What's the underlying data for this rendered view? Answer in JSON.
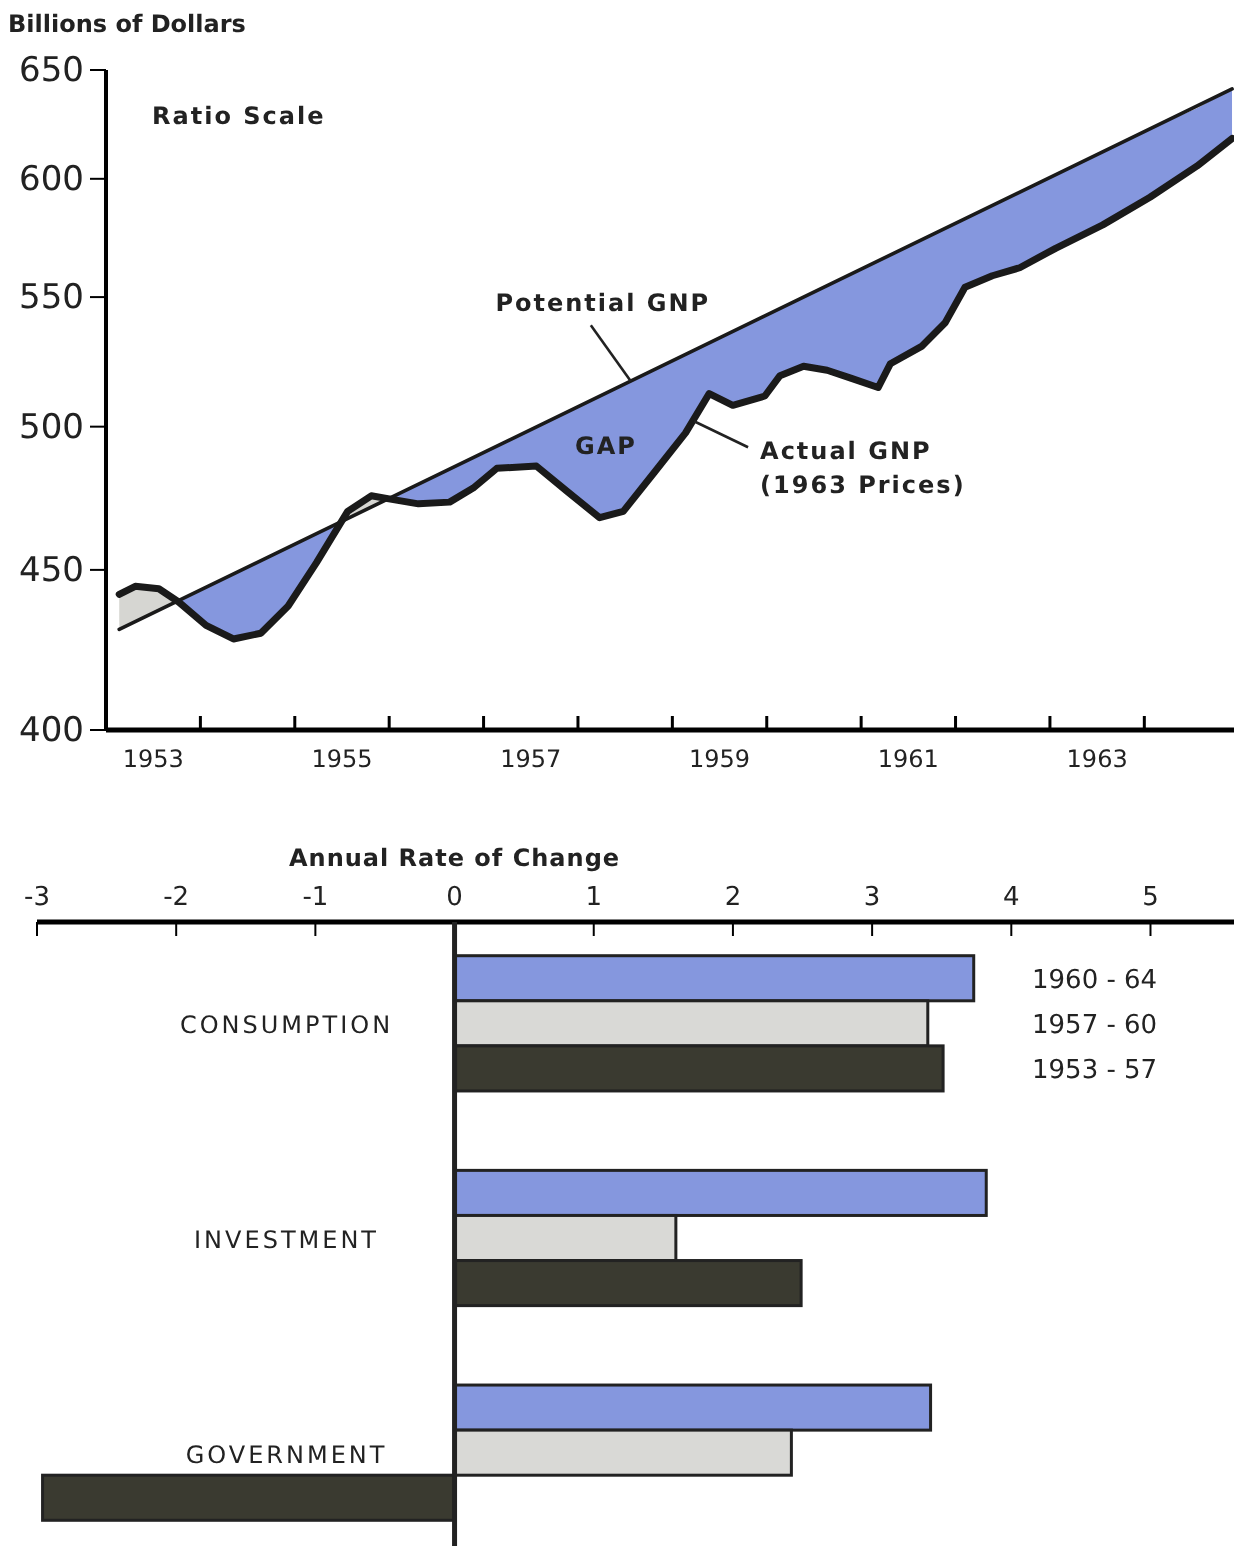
{
  "chart_data": [
    {
      "type": "line",
      "log": "y",
      "ylabel": "Billions of Dollars",
      "xlim": [
        1953,
        1964.95
      ],
      "ylim": [
        400,
        650
      ],
      "xticks": [
        {
          "value": 1953,
          "label": null
        },
        {
          "value": 1953.5,
          "label": "1953"
        },
        {
          "value": 1954,
          "label": null
        },
        {
          "value": 1955,
          "label": null
        },
        {
          "value": 1955.5,
          "label": "1955"
        },
        {
          "value": 1956,
          "label": null
        },
        {
          "value": 1957,
          "label": null
        },
        {
          "value": 1957.5,
          "label": "1957"
        },
        {
          "value": 1958,
          "label": null
        },
        {
          "value": 1959,
          "label": null
        },
        {
          "value": 1959.5,
          "label": "1959"
        },
        {
          "value": 1960,
          "label": null
        },
        {
          "value": 1961,
          "label": null
        },
        {
          "value": 1961.5,
          "label": "1961"
        },
        {
          "value": 1962,
          "label": null
        },
        {
          "value": 1963,
          "label": null
        },
        {
          "value": 1963.5,
          "label": "1963"
        },
        {
          "value": 1964,
          "label": null
        }
      ],
      "yticks": [
        400,
        450,
        500,
        550,
        600,
        650
      ],
      "series": [
        {
          "type": "line",
          "color": "#1a1a1a",
          "x": [
            1953.14,
            1964.93
          ],
          "values": [
            430.7,
            641
          ]
        },
        {
          "type": "line",
          "color": "#1a1a1a",
          "x": [
            1953.14,
            1953.31,
            1953.56,
            1953.77,
            1954.06,
            1954.35,
            1954.64,
            1954.93,
            1955.23,
            1955.56,
            1955.81,
            1956.06,
            1956.31,
            1956.64,
            1956.89,
            1957.14,
            1957.56,
            1957.89,
            1958.23,
            1958.48,
            1958.81,
            1959.14,
            1959.39,
            1959.64,
            1959.98,
            1960.14,
            1960.39,
            1960.64,
            1960.89,
            1961.18,
            1961.31,
            1961.64,
            1961.89,
            1962.1,
            1962.39,
            1962.68,
            1963.06,
            1963.56,
            1964.06,
            1964.56,
            1964.93
          ],
          "values": [
            442,
            444.6,
            443.8,
            439.5,
            432,
            427.7,
            429.5,
            438.2,
            452.4,
            469.8,
            475.2,
            473.8,
            472.4,
            473,
            477.9,
            484.9,
            485.7,
            476.6,
            467.6,
            469.8,
            483.5,
            497.7,
            512.3,
            507.9,
            511.4,
            519.1,
            522.7,
            521.2,
            518.2,
            514.6,
            523.7,
            530.4,
            539.7,
            554,
            558.7,
            562,
            570.1,
            580,
            591.9,
            605.7,
            618.1
          ],
          "lower": [
            442,
            444.6,
            443.8,
            439.5,
            432,
            427.7,
            429.5,
            438.2,
            452.4,
            469.8,
            475.2,
            473.8,
            472.4,
            473,
            477.9,
            484.9,
            485.7,
            476.6,
            467.6,
            469.8,
            483.5,
            497.7,
            512.3,
            507.9,
            511.4,
            519.1,
            522.7,
            521.2,
            518.2,
            514.6,
            523.7,
            530.4,
            539.7,
            554,
            558.7,
            562,
            570.1,
            580,
            591.9,
            605.7,
            618.1
          ],
          "upper": [
            430.7,
            433.2,
            436.8,
            440,
            444.3,
            448.7,
            453.1,
            457.5,
            462.1,
            467.3,
            471.3,
            475.3,
            479.3,
            484.7,
            488.8,
            492.9,
            499.9,
            505.5,
            511.3,
            515.7,
            521.5,
            527.3,
            531.8,
            536.3,
            542.5,
            545.4,
            550,
            554.7,
            559.4,
            564.9,
            567.4,
            573.7,
            578.6,
            582.7,
            588.4,
            594.2,
            601.9,
            612.1,
            622.5,
            632.1,
            641
          ]
        }
      ],
      "annotations": [
        "Ratio Scale",
        {
          "text": "Potential GNP",
          "x": 1958.56,
          "y": 517
        },
        "GAP",
        {
          "text": "Actual GNP\n(1963 Prices)",
          "x": 1959.23,
          "y": 502
        }
      ]
    },
    {
      "type": "bar",
      "orientation": "horizontal",
      "xlabel": "Annual Rate of Change",
      "xlim": [
        -3,
        5.6
      ],
      "xticks": [
        -3,
        -2,
        -1,
        0,
        1,
        2,
        3,
        4,
        5
      ],
      "legend": "top right",
      "categories": [
        "CONSUMPTION",
        "INVESTMENT",
        "GOVERNMENT"
      ],
      "series": [
        {
          "name": "1960 - 64",
          "color": "#8597de",
          "values": [
            3.73,
            3.82,
            3.42
          ]
        },
        {
          "name": "1957 - 60",
          "color": "#d9d9d6",
          "values": [
            3.4,
            1.59,
            2.42
          ]
        },
        {
          "name": "1953 - 57",
          "color": "#3a3a30",
          "values": [
            3.51,
            2.49,
            -2.96
          ]
        }
      ]
    }
  ]
}
